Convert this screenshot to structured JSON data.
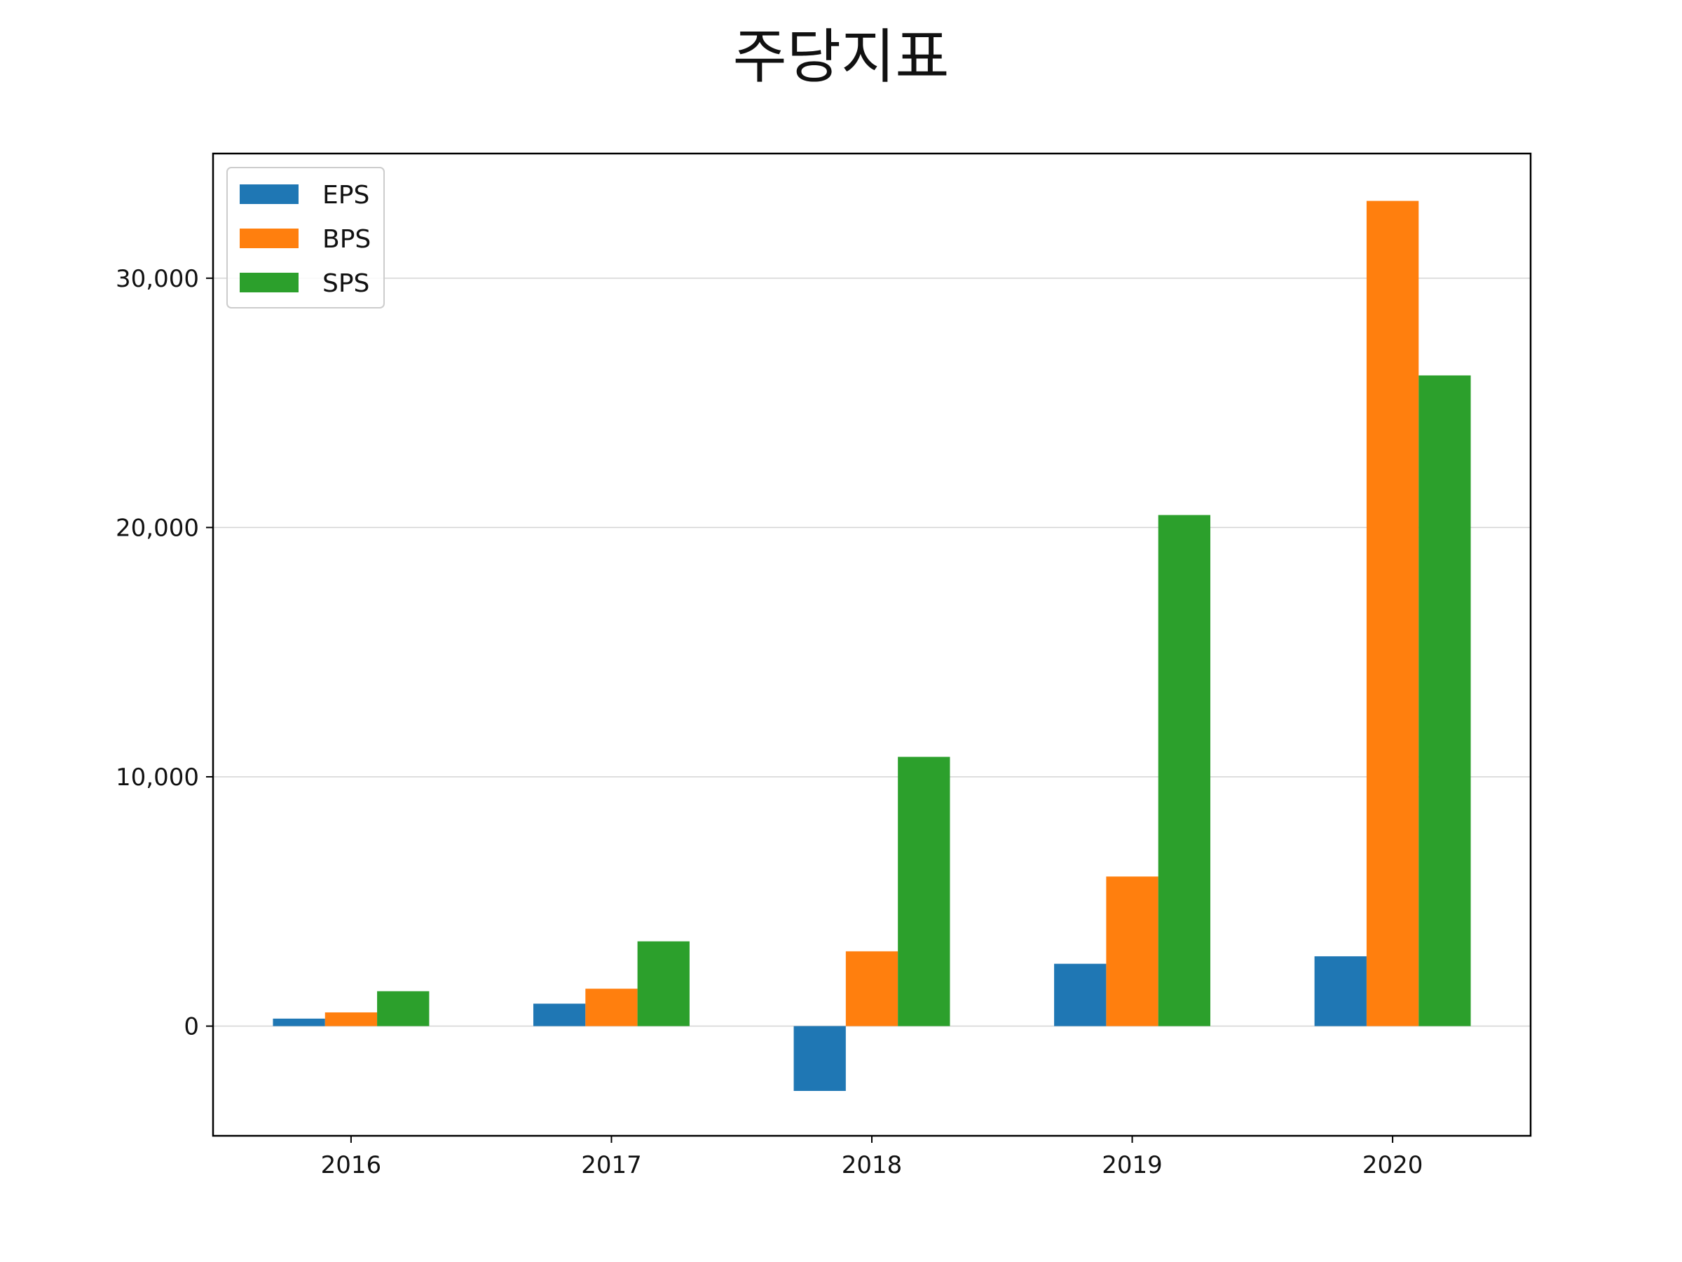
{
  "chart_data": {
    "type": "bar",
    "title": "주당지표",
    "xlabel": "",
    "ylabel": "",
    "categories": [
      "2016",
      "2017",
      "2018",
      "2019",
      "2020"
    ],
    "series": [
      {
        "name": "EPS",
        "color": "#1f77b4",
        "values": [
          300,
          900,
          -2600,
          2500,
          2800
        ]
      },
      {
        "name": "BPS",
        "color": "#ff7f0e",
        "values": [
          550,
          1500,
          3000,
          6000,
          33100
        ]
      },
      {
        "name": "SPS",
        "color": "#2ca02c",
        "values": [
          1400,
          3400,
          10800,
          20500,
          26100
        ]
      }
    ],
    "ylim": [
      -4400,
      35000
    ],
    "yticks": [
      0,
      10000,
      20000,
      30000
    ],
    "ytick_labels": [
      "0",
      "10,000",
      "20,000",
      "30,000"
    ],
    "grid": "horizontal",
    "legend": "top-left"
  }
}
